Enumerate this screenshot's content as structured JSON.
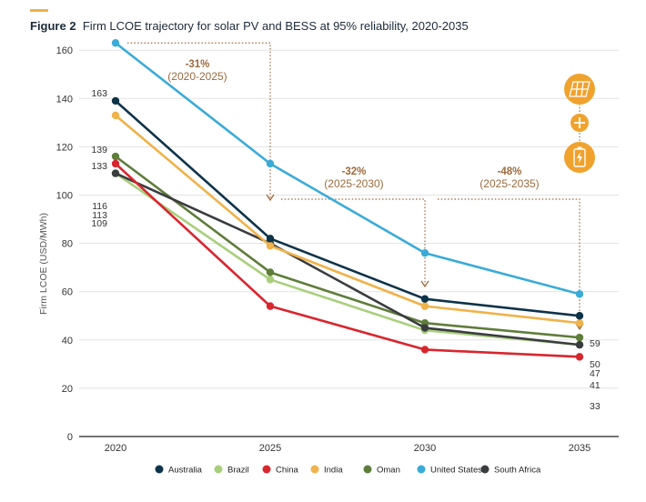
{
  "figure": {
    "label": "Figure 2",
    "title": "Firm LCOE trajectory for solar PV and BESS at 95% reliability, 2020-2035",
    "accent": "#f0b24a"
  },
  "annotations": [
    {
      "pct": "-31%",
      "range": "(2020-2025)",
      "from": 2020,
      "to": 2025
    },
    {
      "pct": "-32%",
      "range": "(2025-2030)",
      "from": 2025,
      "to": 2030
    },
    {
      "pct": "-48%",
      "range": "(2025-2035)",
      "from": 2025,
      "to": 2035
    }
  ],
  "icons": [
    "solar-panel-icon",
    "plus-icon",
    "battery-icon"
  ],
  "chart_data": {
    "type": "line",
    "title": "",
    "xlabel": "",
    "ylabel": "Firm LCOE (USD/MWh)",
    "x": [
      2020,
      2025,
      2030,
      2035
    ],
    "ylim": [
      0,
      170
    ],
    "yticks": [
      0,
      20,
      40,
      60,
      80,
      100,
      120,
      140,
      160
    ],
    "grid": true,
    "legend_position": "bottom",
    "series": [
      {
        "name": "Australia",
        "color": "#0d3349",
        "values": [
          139,
          82,
          57,
          50
        ]
      },
      {
        "name": "Brazil",
        "color": "#a8cf7c",
        "values": [
          109,
          65,
          44,
          38
        ]
      },
      {
        "name": "China",
        "color": "#d8262e",
        "values": [
          113,
          54,
          36,
          33
        ]
      },
      {
        "name": "India",
        "color": "#f0b24a",
        "values": [
          133,
          79,
          54,
          47
        ]
      },
      {
        "name": "Oman",
        "color": "#5f7d3b",
        "values": [
          116,
          68,
          47,
          41
        ]
      },
      {
        "name": "United States",
        "color": "#3aabd8",
        "values": [
          163,
          113,
          76,
          59
        ]
      },
      {
        "name": "South Africa",
        "color": "#3a3d3f",
        "values": [
          109,
          80,
          45,
          38
        ]
      }
    ],
    "start_labels": [
      "163",
      "139",
      "133",
      "116",
      "113",
      "109"
    ],
    "end_labels": [
      "59",
      "50",
      "47",
      "41",
      "33"
    ]
  }
}
